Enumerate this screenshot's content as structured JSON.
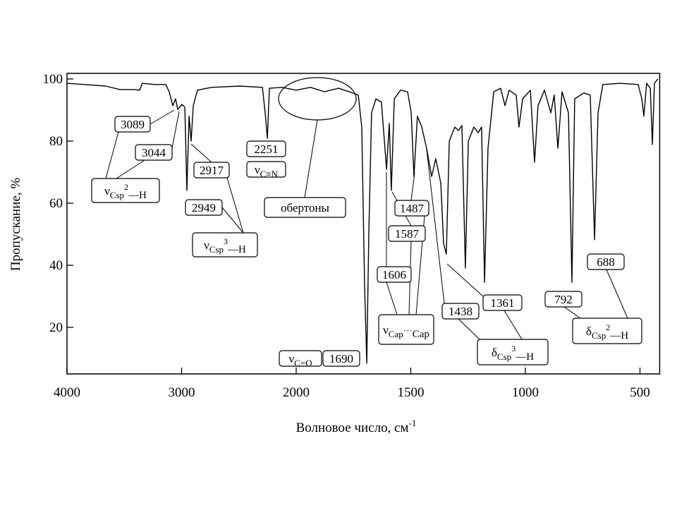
{
  "chart_data": {
    "type": "line",
    "x_label": {
      "text": "Волновое число, см",
      "sup": "-1"
    },
    "y_label": "Пропускание, %",
    "xlim": [
      4000,
      414
    ],
    "ylim": [
      5,
      101.8
    ],
    "xticks": [
      4000,
      3000,
      2000,
      1500,
      1000,
      500
    ],
    "yticks": [
      100,
      80,
      60,
      40,
      20
    ],
    "color": "#000000",
    "x": [
      4000,
      3846,
      3662,
      3538,
      3415,
      3366,
      3342,
      3231,
      3138,
      3108,
      3077,
      3052,
      3034,
      2997,
      2972,
      2954,
      2935,
      2917,
      2898,
      2862,
      2738,
      2492,
      2295,
      2271,
      2252,
      2234,
      2123,
      2000,
      1938,
      1877,
      1815,
      1754,
      1729,
      1714,
      1702,
      1692,
      1683,
      1671,
      1652,
      1628,
      1606,
      1594,
      1585,
      1572,
      1545,
      1514,
      1498,
      1486,
      1471,
      1452,
      1431,
      1409,
      1391,
      1369,
      1357,
      1345,
      1332,
      1308,
      1292,
      1277,
      1262,
      1249,
      1225,
      1206,
      1191,
      1178,
      1163,
      1138,
      1108,
      1089,
      1071,
      1040,
      1028,
      1012,
      978,
      960,
      945,
      917,
      889,
      874,
      858,
      840,
      812,
      797,
      785,
      745,
      717,
      698,
      683,
      662,
      585,
      508,
      492,
      483,
      471,
      455,
      446,
      437,
      422
    ],
    "values": [
      98.6,
      98.2,
      97.7,
      96.6,
      96.6,
      96.4,
      98.6,
      98.2,
      98.2,
      95.9,
      91.4,
      93.6,
      90.2,
      91.8,
      90.9,
      64.1,
      88.0,
      80.0,
      91.4,
      96.4,
      97.3,
      97.7,
      97.3,
      89.1,
      80.9,
      97.0,
      97.3,
      96.4,
      97.3,
      95.9,
      97.0,
      95.5,
      94.8,
      84.5,
      34.5,
      8.4,
      50.4,
      89.1,
      93.6,
      92.5,
      70.9,
      85.7,
      64.1,
      93.6,
      96.4,
      95.9,
      89.1,
      68.6,
      88.0,
      84.5,
      77.7,
      68.6,
      74.3,
      66.4,
      47.0,
      43.6,
      80.0,
      84.5,
      83.4,
      85.0,
      39.1,
      80.0,
      84.5,
      82.7,
      84.5,
      34.5,
      77.7,
      95.9,
      97.0,
      91.4,
      96.4,
      94.8,
      84.5,
      93.6,
      96.4,
      73.2,
      91.4,
      96.4,
      89.1,
      94.8,
      77.7,
      95.9,
      89.1,
      34.5,
      93.6,
      95.5,
      94.8,
      48.2,
      89.1,
      98.2,
      98.6,
      98.2,
      93.6,
      88.0,
      98.6,
      97.0,
      78.9,
      98.6,
      100.0
    ],
    "annotations": [
      {
        "text": "3089"
      },
      {
        "text": "3044"
      },
      {
        "symbol": "ν",
        "sub": "Csp",
        "sup": "2",
        "tail": "—H"
      },
      {
        "text": "2917"
      },
      {
        "text": "2949"
      },
      {
        "symbol": "ν",
        "sub": "Csp",
        "sup": "3",
        "tail": "—H"
      },
      {
        "text": "2251"
      },
      {
        "symbol": "ν",
        "sub": "C≡N"
      },
      {
        "text": "обертоны"
      },
      {
        "text": "1487"
      },
      {
        "text": "1587"
      },
      {
        "text": "1606"
      },
      {
        "symbol": "ν",
        "sub": "Cар",
        "mid": "···",
        "tail": "Cар"
      },
      {
        "symbol": "ν",
        "sub": "C=O"
      },
      {
        "text": "1690"
      },
      {
        "text": "1438"
      },
      {
        "text": "1361"
      },
      {
        "symbol": "δ",
        "sub": "Csp",
        "sup": "3",
        "tail": "—H"
      },
      {
        "text": "792"
      },
      {
        "text": "688"
      },
      {
        "symbol": "δ",
        "sub": "Csp",
        "sup": "2",
        "tail": "—H"
      }
    ]
  }
}
